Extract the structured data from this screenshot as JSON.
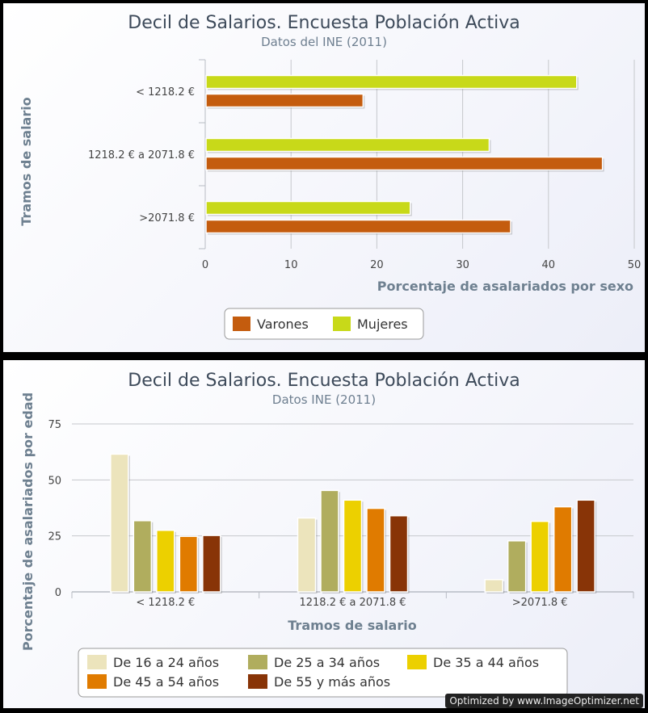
{
  "chart_data": [
    {
      "type": "bar",
      "orientation": "horizontal",
      "title": "Decil de Salarios. Encuesta Población Activa",
      "subtitle": "Datos del INE (2011)",
      "xlabel": "Porcentaje de asalariados por sexo",
      "ylabel": "Tramos de salario",
      "categories": [
        "< 1218.2 €",
        "1218.2 € a 2071.8 €",
        ">2071.8 €"
      ],
      "xlim": [
        0,
        50
      ],
      "xticks": [
        0,
        10,
        20,
        30,
        40,
        50
      ],
      "grid": true,
      "legend_placement": "bottom",
      "series": [
        {
          "name": "Mujeres",
          "color": "#c8d919",
          "values": [
            43.2,
            33.0,
            23.8
          ]
        },
        {
          "name": "Varones",
          "color": "#c45c0e",
          "values": [
            18.3,
            46.2,
            35.5
          ]
        }
      ],
      "legend": [
        {
          "name": "Varones",
          "color": "#c45c0e"
        },
        {
          "name": "Mujeres",
          "color": "#c8d919"
        }
      ]
    },
    {
      "type": "bar",
      "orientation": "vertical",
      "title": "Decil de Salarios. Encuesta Población Activa",
      "subtitle": "Datos INE (2011)",
      "xlabel": "Tramos de salario",
      "ylabel": "Porcentaje de asalariados por edad",
      "categories": [
        "< 1218.2 €",
        "1218.2 € a 2071.8 €",
        ">2071.8 €"
      ],
      "ylim": [
        0,
        75
      ],
      "yticks": [
        0,
        25,
        50,
        75
      ],
      "grid": true,
      "legend_placement": "bottom",
      "series": [
        {
          "name": "De 16 a 24 años",
          "color": "#ece4bc",
          "values": [
            61.5,
            33.0,
            5.5
          ]
        },
        {
          "name": "De 25 a 34 años",
          "color": "#b0ad5e",
          "values": [
            31.8,
            45.3,
            22.8
          ]
        },
        {
          "name": "De 35 a 44 años",
          "color": "#ecd000",
          "values": [
            27.5,
            41.0,
            31.5
          ]
        },
        {
          "name": "De 45 a 54 años",
          "color": "#e07b00",
          "values": [
            24.8,
            37.3,
            38.0
          ]
        },
        {
          "name": "De 55 y más años",
          "color": "#883407",
          "values": [
            25.2,
            34.0,
            41.0
          ]
        }
      ]
    }
  ],
  "watermark": "Optimized by www.ImageOptimizer.net"
}
